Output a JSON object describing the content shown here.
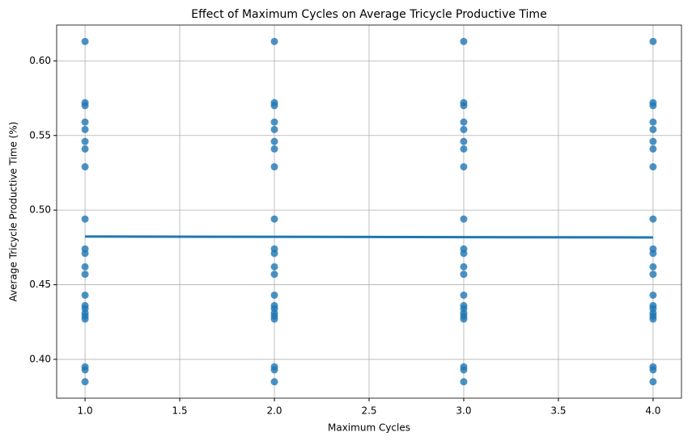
{
  "chart_data": {
    "type": "scatter",
    "title": "Effect of Maximum Cycles on Average Tricycle Productive Time",
    "x_label": "Maximum Cycles",
    "y_label": "Average Tricycle Productive Time (%)",
    "xlim": [
      0.85,
      4.15
    ],
    "ylim": [
      0.374,
      0.624
    ],
    "xticks": [
      {
        "value": 1,
        "label": "1.0"
      },
      1.5,
      {
        "value": 2,
        "label": "2.0"
      },
      2.5,
      {
        "value": 3,
        "label": "3.0"
      },
      3.5,
      {
        "value": 4,
        "label": "4.0"
      }
    ],
    "yticks": [
      {
        "value": 0.4,
        "label": "0.40"
      },
      0.45,
      {
        "value": 0.5,
        "label": "0.50"
      },
      0.55,
      {
        "value": 0.6,
        "label": "0.60"
      }
    ],
    "grid": true,
    "series": [
      {
        "type": "scatter",
        "color": "#1f77b4",
        "x": [
          1,
          1,
          1,
          1,
          1,
          1,
          1,
          1,
          1,
          1,
          1,
          1,
          1,
          1,
          1,
          1,
          1,
          1,
          1,
          1,
          1,
          1,
          2,
          2,
          2,
          2,
          2,
          2,
          2,
          2,
          2,
          2,
          2,
          2,
          2,
          2,
          2,
          2,
          2,
          2,
          2,
          2,
          2,
          2,
          3,
          3,
          3,
          3,
          3,
          3,
          3,
          3,
          3,
          3,
          3,
          3,
          3,
          3,
          3,
          3,
          3,
          3,
          3,
          3,
          3,
          3,
          4,
          4,
          4,
          4,
          4,
          4,
          4,
          4,
          4,
          4,
          4,
          4,
          4,
          4,
          4,
          4,
          4,
          4,
          4,
          4,
          4,
          4
        ],
        "values": [
          0.613,
          0.572,
          0.57,
          0.559,
          0.554,
          0.546,
          0.541,
          0.529,
          0.494,
          0.474,
          0.471,
          0.462,
          0.457,
          0.443,
          0.436,
          0.434,
          0.431,
          0.429,
          0.427,
          0.395,
          0.393,
          0.385,
          0.613,
          0.572,
          0.57,
          0.559,
          0.554,
          0.546,
          0.541,
          0.529,
          0.494,
          0.474,
          0.471,
          0.462,
          0.457,
          0.443,
          0.436,
          0.434,
          0.431,
          0.429,
          0.427,
          0.395,
          0.393,
          0.385,
          0.613,
          0.572,
          0.57,
          0.559,
          0.554,
          0.546,
          0.541,
          0.529,
          0.494,
          0.474,
          0.471,
          0.462,
          0.457,
          0.443,
          0.436,
          0.434,
          0.431,
          0.429,
          0.427,
          0.395,
          0.393,
          0.385,
          0.613,
          0.572,
          0.57,
          0.559,
          0.554,
          0.546,
          0.541,
          0.529,
          0.494,
          0.474,
          0.471,
          0.462,
          0.457,
          0.443,
          0.436,
          0.434,
          0.431,
          0.429,
          0.427,
          0.395,
          0.393,
          0.385
        ]
      },
      {
        "type": "line",
        "color": "#1f77b4",
        "x": [
          1,
          4
        ],
        "values": [
          0.4823,
          0.4817
        ]
      }
    ]
  }
}
